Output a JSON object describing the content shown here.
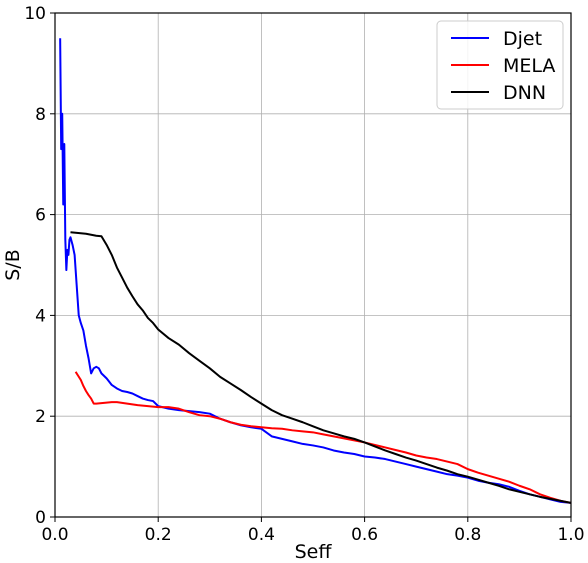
{
  "chart_data": {
    "type": "line",
    "title": "",
    "xlabel": "Seff",
    "ylabel": "S/B",
    "xlim": [
      0.0,
      1.0
    ],
    "ylim": [
      0,
      10
    ],
    "x_ticks": [
      "0.0",
      "0.2",
      "0.4",
      "0.6",
      "0.8",
      "1.0"
    ],
    "y_ticks": [
      "0",
      "2",
      "4",
      "6",
      "8",
      "10"
    ],
    "grid": true,
    "legend_position": "top-right",
    "series": [
      {
        "name": "Djet",
        "color": "#0000ff",
        "x": [
          0.01,
          0.012,
          0.014,
          0.016,
          0.018,
          0.02,
          0.022,
          0.024,
          0.026,
          0.028,
          0.03,
          0.034,
          0.038,
          0.042,
          0.046,
          0.05,
          0.055,
          0.06,
          0.065,
          0.07,
          0.075,
          0.08,
          0.085,
          0.09,
          0.1,
          0.11,
          0.12,
          0.13,
          0.14,
          0.15,
          0.16,
          0.17,
          0.18,
          0.19,
          0.2,
          0.22,
          0.24,
          0.26,
          0.28,
          0.3,
          0.32,
          0.34,
          0.36,
          0.38,
          0.4,
          0.42,
          0.44,
          0.46,
          0.48,
          0.5,
          0.52,
          0.54,
          0.56,
          0.58,
          0.6,
          0.62,
          0.64,
          0.66,
          0.68,
          0.7,
          0.72,
          0.74,
          0.76,
          0.78,
          0.8,
          0.82,
          0.84,
          0.86,
          0.88,
          0.9,
          0.92,
          0.94,
          0.96,
          0.98,
          1.0
        ],
        "y": [
          9.5,
          7.3,
          8.0,
          6.2,
          7.4,
          5.5,
          4.9,
          5.3,
          5.2,
          5.5,
          5.55,
          5.4,
          5.2,
          4.6,
          4.0,
          3.85,
          3.7,
          3.4,
          3.15,
          2.85,
          2.95,
          2.98,
          2.95,
          2.85,
          2.75,
          2.62,
          2.55,
          2.5,
          2.48,
          2.45,
          2.4,
          2.35,
          2.32,
          2.3,
          2.2,
          2.15,
          2.12,
          2.1,
          2.08,
          2.05,
          1.95,
          1.88,
          1.82,
          1.78,
          1.75,
          1.6,
          1.55,
          1.5,
          1.45,
          1.42,
          1.38,
          1.32,
          1.28,
          1.25,
          1.2,
          1.18,
          1.15,
          1.1,
          1.05,
          1.0,
          0.95,
          0.9,
          0.85,
          0.82,
          0.78,
          0.72,
          0.68,
          0.65,
          0.6,
          0.52,
          0.45,
          0.4,
          0.35,
          0.3,
          0.28
        ]
      },
      {
        "name": "MELA",
        "color": "#ff0000",
        "x": [
          0.04,
          0.045,
          0.05,
          0.055,
          0.06,
          0.065,
          0.07,
          0.075,
          0.08,
          0.09,
          0.1,
          0.11,
          0.12,
          0.14,
          0.16,
          0.18,
          0.2,
          0.22,
          0.24,
          0.26,
          0.28,
          0.3,
          0.32,
          0.34,
          0.36,
          0.38,
          0.4,
          0.42,
          0.44,
          0.46,
          0.48,
          0.5,
          0.52,
          0.54,
          0.56,
          0.58,
          0.6,
          0.62,
          0.64,
          0.66,
          0.68,
          0.7,
          0.72,
          0.74,
          0.76,
          0.78,
          0.8,
          0.82,
          0.84,
          0.86,
          0.88,
          0.9,
          0.92,
          0.94,
          0.96,
          0.98,
          1.0
        ],
        "y": [
          2.88,
          2.8,
          2.72,
          2.6,
          2.5,
          2.42,
          2.35,
          2.25,
          2.25,
          2.26,
          2.27,
          2.28,
          2.28,
          2.25,
          2.22,
          2.2,
          2.18,
          2.18,
          2.15,
          2.08,
          2.02,
          2.0,
          1.95,
          1.88,
          1.83,
          1.8,
          1.78,
          1.76,
          1.75,
          1.72,
          1.7,
          1.68,
          1.64,
          1.6,
          1.56,
          1.52,
          1.48,
          1.43,
          1.38,
          1.33,
          1.28,
          1.22,
          1.18,
          1.15,
          1.1,
          1.05,
          0.95,
          0.88,
          0.82,
          0.76,
          0.7,
          0.62,
          0.55,
          0.45,
          0.38,
          0.32,
          0.28
        ]
      },
      {
        "name": "DNN",
        "color": "#000000",
        "x": [
          0.03,
          0.04,
          0.05,
          0.06,
          0.07,
          0.08,
          0.09,
          0.1,
          0.11,
          0.12,
          0.13,
          0.14,
          0.15,
          0.16,
          0.17,
          0.18,
          0.19,
          0.2,
          0.22,
          0.24,
          0.26,
          0.28,
          0.3,
          0.32,
          0.34,
          0.36,
          0.38,
          0.4,
          0.42,
          0.44,
          0.46,
          0.48,
          0.5,
          0.52,
          0.54,
          0.56,
          0.58,
          0.6,
          0.62,
          0.64,
          0.66,
          0.68,
          0.7,
          0.72,
          0.74,
          0.76,
          0.78,
          0.8,
          0.82,
          0.84,
          0.86,
          0.88,
          0.9,
          0.92,
          0.94,
          0.96,
          0.98,
          1.0
        ],
        "y": [
          5.65,
          5.64,
          5.63,
          5.62,
          5.6,
          5.58,
          5.57,
          5.4,
          5.2,
          4.95,
          4.75,
          4.55,
          4.38,
          4.22,
          4.1,
          3.95,
          3.85,
          3.72,
          3.55,
          3.42,
          3.25,
          3.1,
          2.95,
          2.78,
          2.65,
          2.52,
          2.38,
          2.25,
          2.12,
          2.02,
          1.95,
          1.88,
          1.8,
          1.72,
          1.66,
          1.6,
          1.55,
          1.48,
          1.4,
          1.32,
          1.25,
          1.18,
          1.12,
          1.05,
          0.98,
          0.92,
          0.85,
          0.8,
          0.74,
          0.68,
          0.62,
          0.55,
          0.5,
          0.45,
          0.4,
          0.36,
          0.32,
          0.28
        ]
      }
    ]
  }
}
